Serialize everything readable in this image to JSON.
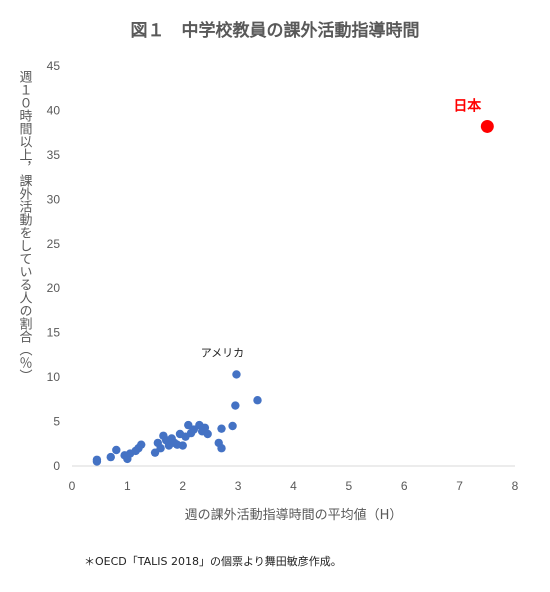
{
  "chart_data": {
    "type": "scatter",
    "title": "図１　中学校教員の課外活動指導時間",
    "xlabel": "週の課外活動指導時間の平均値（H）",
    "ylabel": "週１０時間以上，課外活動をしている人の割合（％）",
    "xlim": [
      0,
      8
    ],
    "ylim": [
      0,
      45
    ],
    "x_ticks": [
      "0",
      "1",
      "2",
      "3",
      "4",
      "5",
      "6",
      "7",
      "8"
    ],
    "y_ticks": [
      "0",
      "5",
      "10",
      "15",
      "20",
      "25",
      "30",
      "35",
      "40",
      "45"
    ],
    "grid": false,
    "series": [
      {
        "color": "#4472c4",
        "points": [
          {
            "x": 0.45,
            "y": 0.5
          },
          {
            "x": 0.45,
            "y": 0.7
          },
          {
            "x": 0.7,
            "y": 1.0
          },
          {
            "x": 0.8,
            "y": 1.8
          },
          {
            "x": 0.95,
            "y": 1.2
          },
          {
            "x": 1.0,
            "y": 0.8
          },
          {
            "x": 1.05,
            "y": 1.4
          },
          {
            "x": 1.15,
            "y": 1.7
          },
          {
            "x": 1.2,
            "y": 2.0
          },
          {
            "x": 1.25,
            "y": 2.4
          },
          {
            "x": 1.5,
            "y": 1.5
          },
          {
            "x": 1.55,
            "y": 2.6
          },
          {
            "x": 1.6,
            "y": 2.0
          },
          {
            "x": 1.65,
            "y": 3.4
          },
          {
            "x": 1.7,
            "y": 2.9
          },
          {
            "x": 1.75,
            "y": 2.3
          },
          {
            "x": 1.8,
            "y": 3.1
          },
          {
            "x": 1.85,
            "y": 2.6
          },
          {
            "x": 1.9,
            "y": 2.4
          },
          {
            "x": 1.95,
            "y": 3.6
          },
          {
            "x": 2.0,
            "y": 2.3
          },
          {
            "x": 2.05,
            "y": 3.3
          },
          {
            "x": 2.1,
            "y": 4.6
          },
          {
            "x": 2.15,
            "y": 3.7
          },
          {
            "x": 2.2,
            "y": 4.1
          },
          {
            "x": 2.3,
            "y": 4.6
          },
          {
            "x": 2.35,
            "y": 3.9
          },
          {
            "x": 2.4,
            "y": 4.3
          },
          {
            "x": 2.45,
            "y": 3.6
          },
          {
            "x": 2.65,
            "y": 2.6
          },
          {
            "x": 2.7,
            "y": 2.0
          },
          {
            "x": 2.7,
            "y": 4.2
          },
          {
            "x": 2.9,
            "y": 4.5
          },
          {
            "x": 2.95,
            "y": 6.8
          },
          {
            "x": 2.97,
            "y": 10.3
          },
          {
            "x": 3.35,
            "y": 7.4
          }
        ]
      },
      {
        "color": "#ff0000",
        "points": [
          {
            "x": 7.5,
            "y": 38.2
          }
        ]
      }
    ],
    "annotations": [
      {
        "text": "アメリカ",
        "x": 2.97,
        "y": 10.3
      },
      {
        "text": "日本",
        "x": 7.5,
        "y": 38.2
      }
    ]
  },
  "footnote": "＊OECD「TALIS 2018」の個票より舞田敏彦作成。"
}
